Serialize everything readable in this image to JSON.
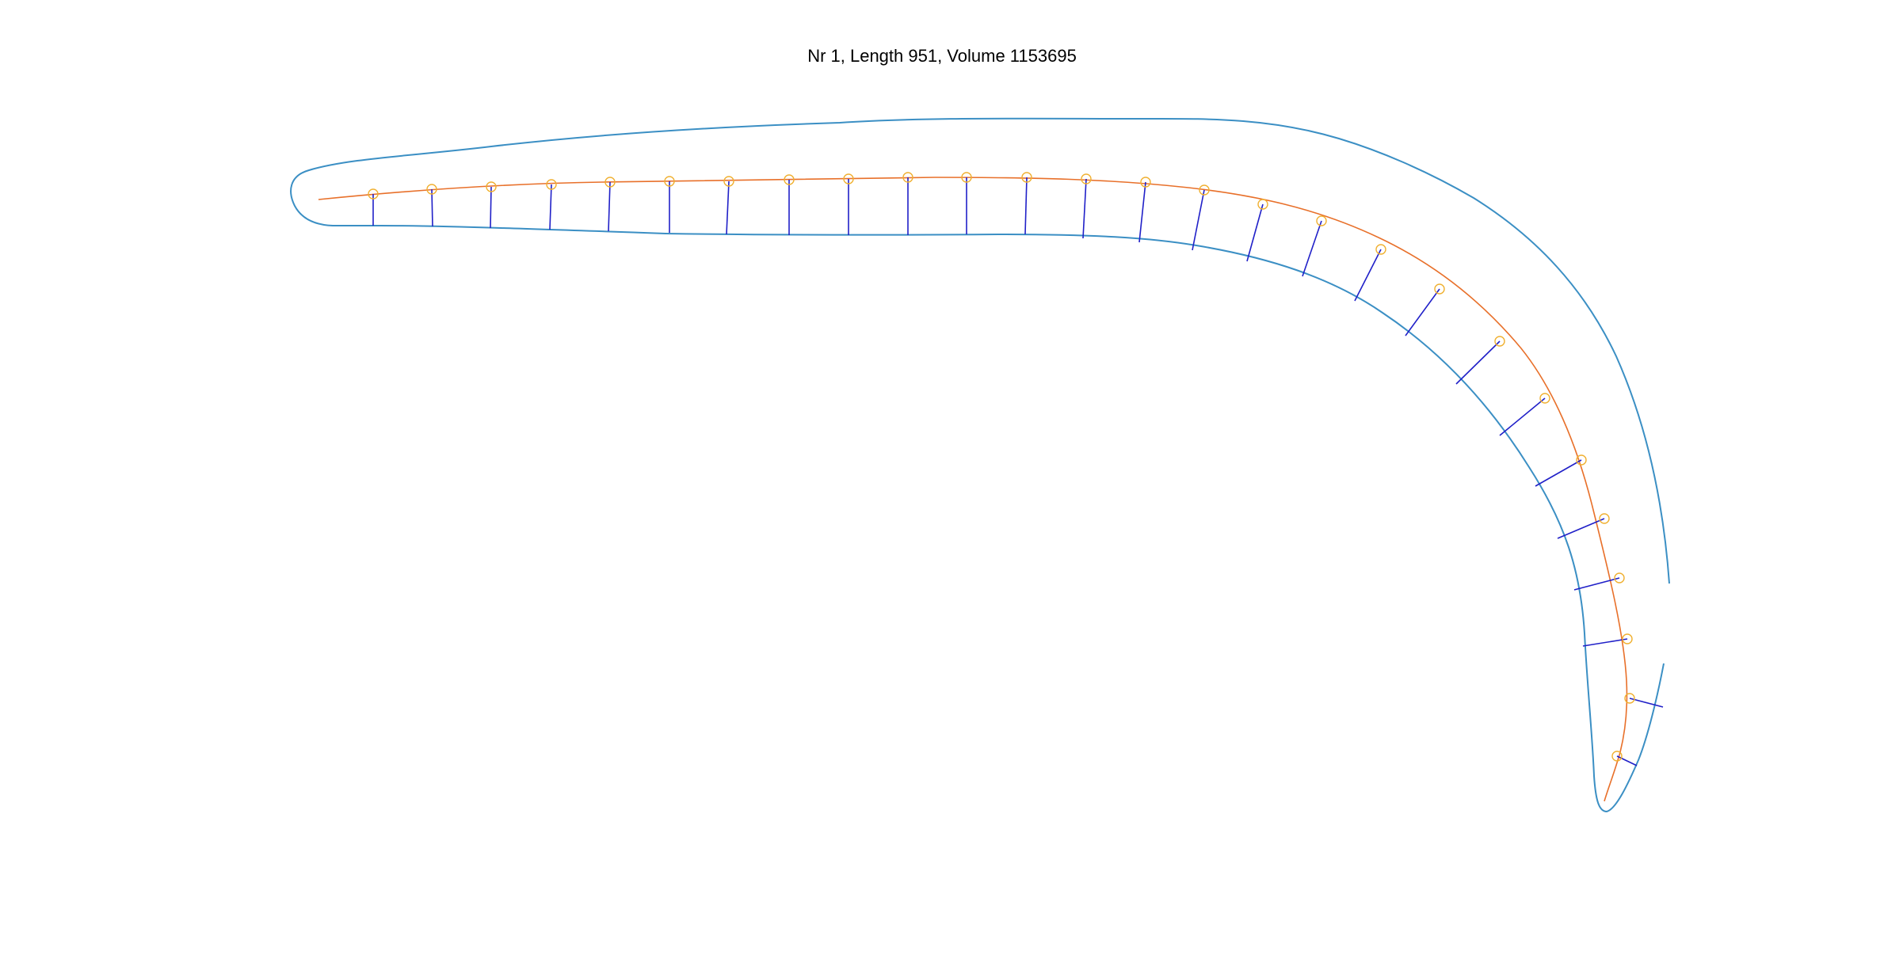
{
  "title": "Nr 1, Length 951, Volume 1153695",
  "colors": {
    "outline": "#3b8fc4",
    "midline": "#e8702a",
    "width_lines": "#2020c8",
    "markers": "#f0b030"
  },
  "icons": {
    "outline": "contour-line",
    "midline": "midline-curve",
    "markers": "circle-marker",
    "widths": "width-segment"
  }
}
